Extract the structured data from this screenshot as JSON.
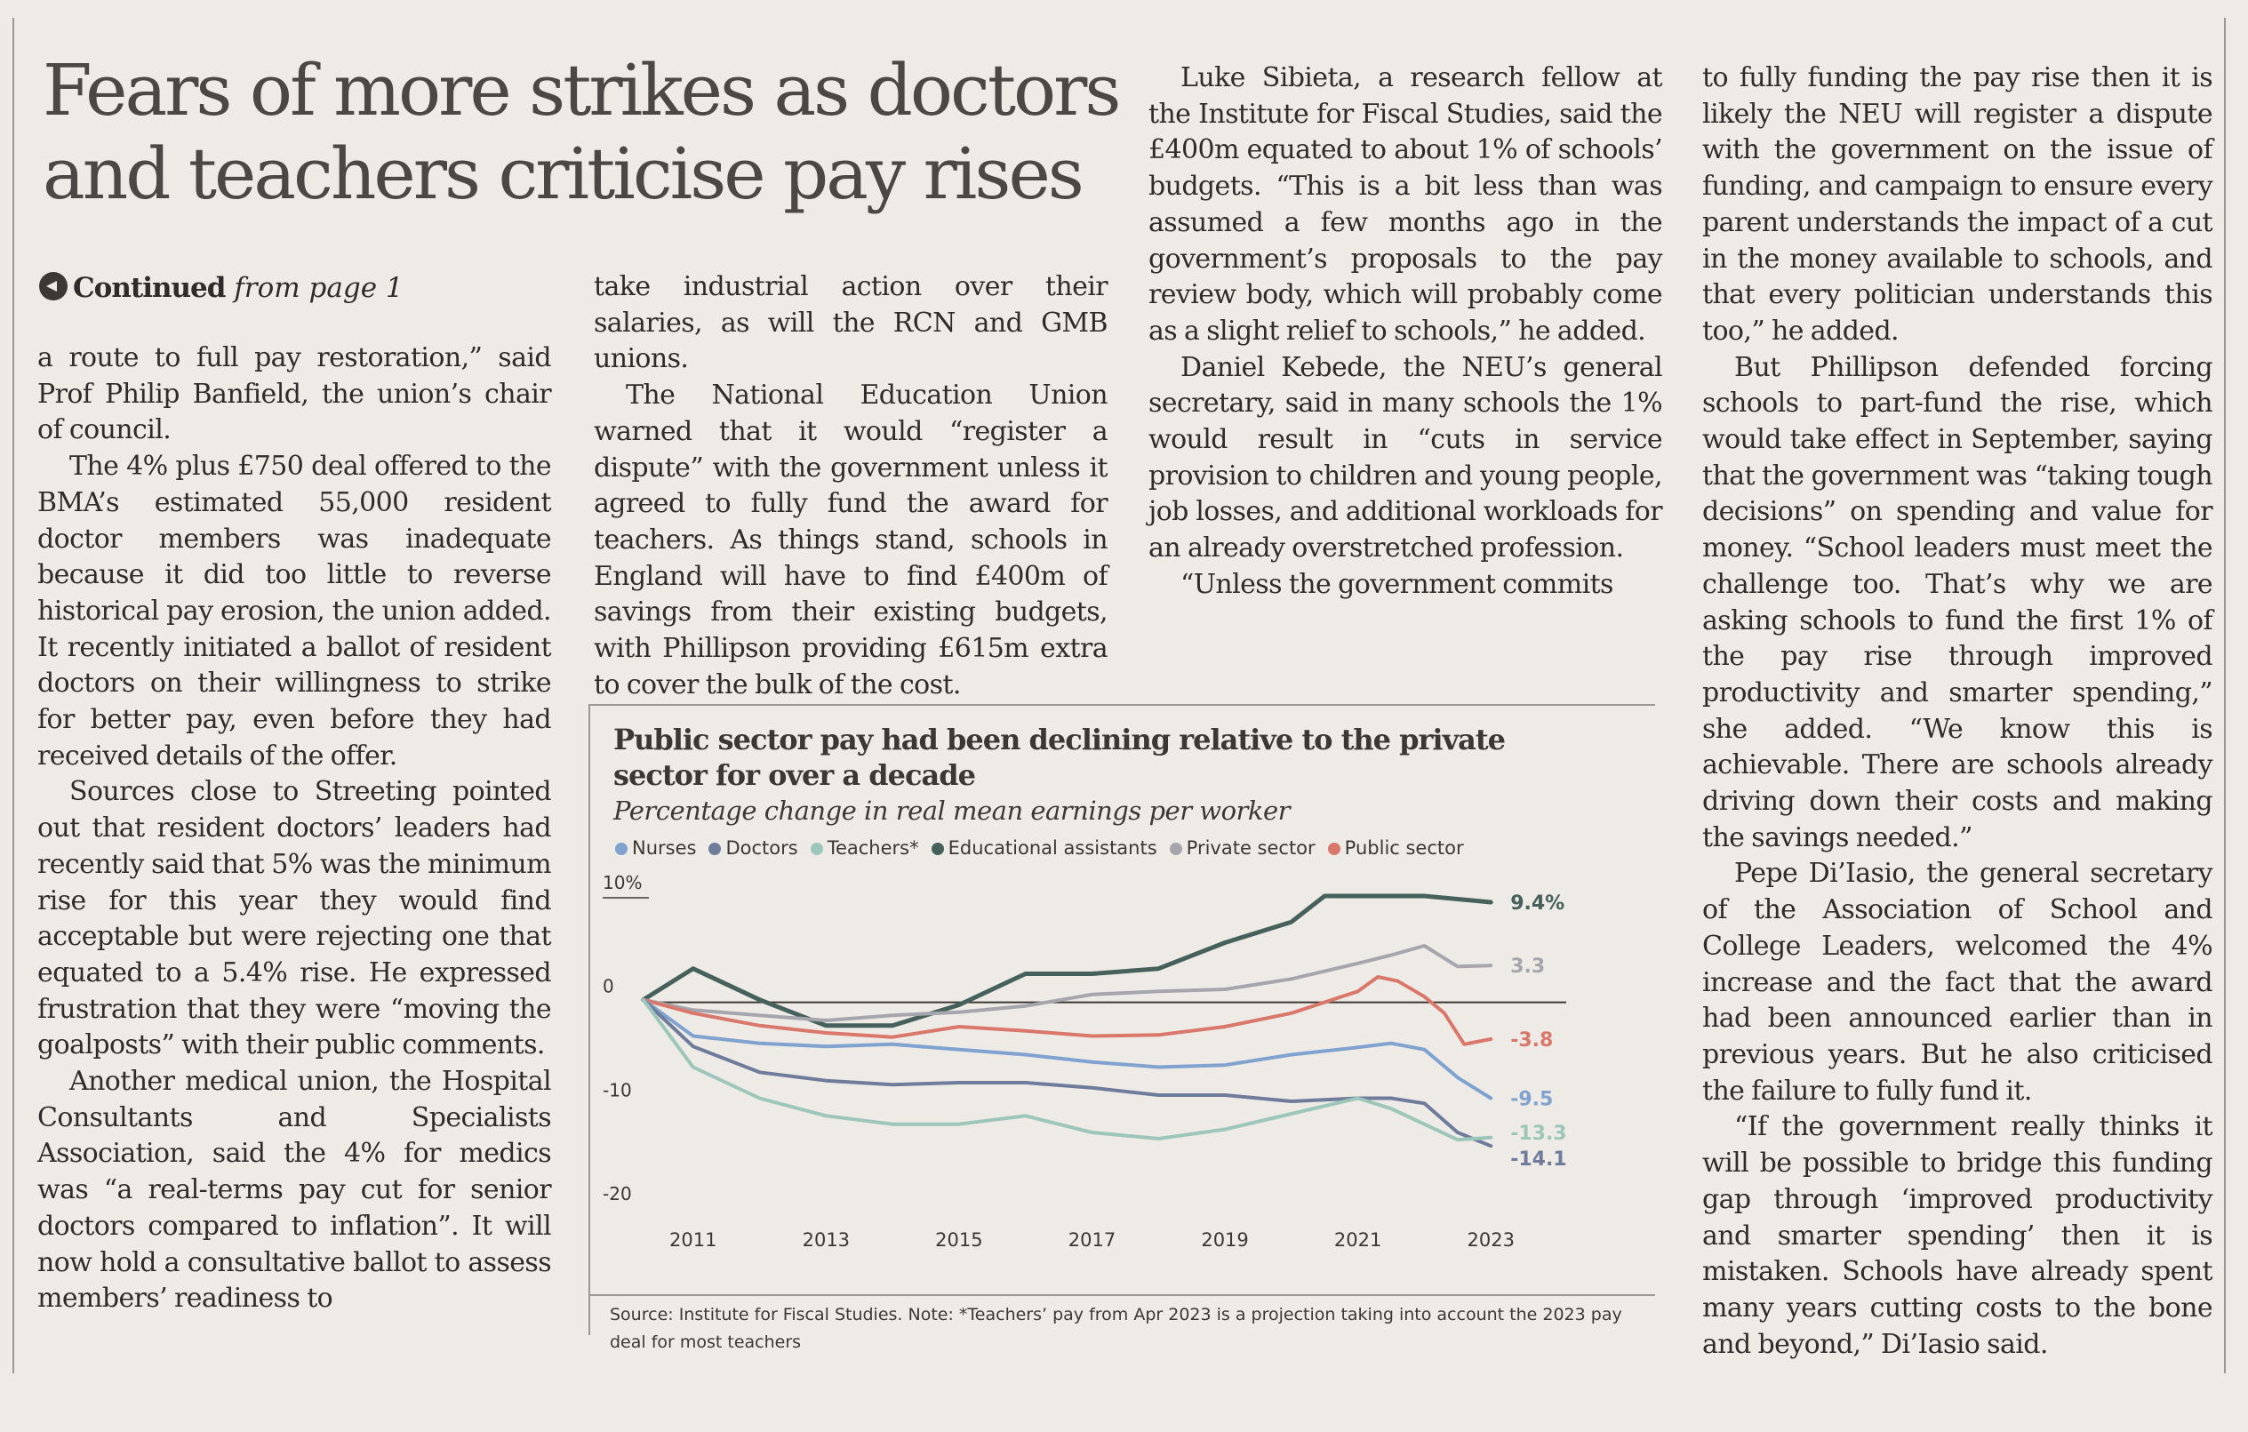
{
  "headline": "Fears of more strikes as doctors and teachers criticise pay rises",
  "continued": {
    "bold": "Continued",
    "italic": "from page 1"
  },
  "columns": [
    {
      "paragraphs": [
        "a route to full pay restoration,” said Prof Philip Banfield, the union’s chair of council.",
        "The 4% plus £750 deal offered to the BMA’s estimated 55,000 resident doctor members was inadequate because it did too little to reverse historical pay erosion, the union added. It recently initiated a ballot of resident doctors on their willingness to strike for better pay, even before they had received details of the offer.",
        "Sources close to Streeting pointed out that resident doctors’ leaders had recently said that 5% was the minimum rise for this year they would find acceptable but were rejecting one that equated to a 5.4% rise. He expressed frustration that they were “moving the goalposts” with their public comments.",
        "Another medical union, the Hospital Consultants and Specialists Association, said the 4% for medics was “a real-terms pay cut for senior doctors compared to inflation”. It will now hold a consultative ballot to assess members’ readiness to"
      ]
    },
    {
      "paragraphs": [
        "take industrial action over their salaries, as will the RCN and GMB unions.",
        "The National Education Union warned that it would “register a dispute” with the government unless it agreed to fully fund the award for teachers. As things stand, schools in England will have to find £400m of savings from their existing budgets, with Phillipson providing £615m extra to cover the bulk of the cost."
      ]
    },
    {
      "paragraphs": [
        "Luke Sibieta, a research fellow at the Institute for Fiscal Studies, said the £400m equated to about 1% of schools’ budgets. “This is a bit less than was assumed a few months ago in the government’s proposals to the pay review body, which will probably come as a slight relief to schools,” he added.",
        "Daniel Kebede, the NEU’s general secretary, said in many schools the 1% would result in “cuts in service provision to children and young people, job losses, and additional workloads for an already overstretched profession.",
        "“Unless the government commits"
      ]
    },
    {
      "paragraphs": [
        "to fully funding the pay rise then it is likely the NEU will register a dispute with the government on the issue of funding, and campaign to ensure every parent understands the impact of a cut in the money available to schools, and that every politician understands this too,” he added.",
        "But Phillipson defended forcing schools to part-fund the rise, which would take effect in September, saying that the government was “taking tough decisions” on spending and value for money. “School leaders must meet the challenge too. That’s why we are asking schools to fund the first 1% of the pay rise through improved productivity and smarter spending,” she added. “We know this is achievable. There are schools already driving down their costs and making the savings needed.”",
        "Pepe Di’Iasio, the general secretary of the Association of School and College Leaders, welcomed the 4% increase and the fact that the award had been announced earlier than in previous years. But he also criticised the failure to fully fund it.",
        "“If the government really thinks it will be possible to bridge this funding gap through ‘improved productivity and smarter spending’ then it is mistaken. Schools have already spent many years cutting costs to the bone and beyond,” Di’Iasio said."
      ]
    }
  ],
  "chart": {
    "title": "Public sector pay had been declining relative to the private sector for over a decade",
    "subtitle": "Percentage change in real mean earnings per worker",
    "source": "Source: Institute for Fiscal Studies. Note: *Teachers’ pay from Apr 2023 is a projection taking into account the 2023 pay deal for most teachers"
  },
  "chart_data": {
    "type": "line",
    "title": "Public sector pay had been declining relative to the private sector for over a decade",
    "subtitle": "Percentage change in real mean earnings per worker",
    "xlabel": "",
    "ylabel": "",
    "xlim": [
      2009.8,
      2024
    ],
    "ylim": [
      -20,
      10
    ],
    "x_ticks": [
      2011,
      2013,
      2015,
      2017,
      2019,
      2021,
      2023
    ],
    "y_ticks": [
      {
        "value": 10,
        "label": "10%"
      },
      {
        "value": 0,
        "label": "0"
      },
      {
        "value": -10,
        "label": "-10"
      },
      {
        "value": -20,
        "label": "-20"
      }
    ],
    "zero_line": true,
    "grid": false,
    "legend": "top-left",
    "series": [
      {
        "name": "Nurses",
        "color": "#7fa2cf",
        "end_label": "-9.5",
        "points": [
          [
            2010.25,
            0
          ],
          [
            2011,
            -3.5
          ],
          [
            2012,
            -4.2
          ],
          [
            2013,
            -4.5
          ],
          [
            2014,
            -4.3
          ],
          [
            2015,
            -4.8
          ],
          [
            2016,
            -5.3
          ],
          [
            2017,
            -6
          ],
          [
            2018,
            -6.5
          ],
          [
            2019,
            -6.3
          ],
          [
            2020,
            -5.3
          ],
          [
            2021,
            -4.6
          ],
          [
            2021.5,
            -4.2
          ],
          [
            2022,
            -4.8
          ],
          [
            2022.5,
            -7.5
          ],
          [
            2023,
            -9.5
          ]
        ]
      },
      {
        "name": "Doctors",
        "color": "#6f7b9a",
        "end_label": "-14.1",
        "points": [
          [
            2010.25,
            0
          ],
          [
            2011,
            -4.5
          ],
          [
            2012,
            -7
          ],
          [
            2013,
            -7.8
          ],
          [
            2014,
            -8.2
          ],
          [
            2015,
            -8
          ],
          [
            2016,
            -8
          ],
          [
            2017,
            -8.5
          ],
          [
            2018,
            -9.2
          ],
          [
            2019,
            -9.2
          ],
          [
            2020,
            -9.8
          ],
          [
            2021,
            -9.5
          ],
          [
            2021.5,
            -9.5
          ],
          [
            2022,
            -10
          ],
          [
            2022.5,
            -12.8
          ],
          [
            2023,
            -14.1
          ]
        ]
      },
      {
        "name": "Teachers*",
        "color": "#9cc6b9",
        "end_label": "-13.3",
        "points": [
          [
            2010.25,
            0
          ],
          [
            2011,
            -6.5
          ],
          [
            2012,
            -9.5
          ],
          [
            2013,
            -11.2
          ],
          [
            2014,
            -12
          ],
          [
            2015,
            -12
          ],
          [
            2016,
            -11.2
          ],
          [
            2017,
            -12.8
          ],
          [
            2018,
            -13.4
          ],
          [
            2019,
            -12.5
          ],
          [
            2020,
            -11
          ],
          [
            2021,
            -9.5
          ],
          [
            2021.5,
            -10.5
          ],
          [
            2022,
            -12
          ],
          [
            2022.5,
            -13.5
          ],
          [
            2023,
            -13.3
          ]
        ]
      },
      {
        "name": "Educational assistants",
        "color": "#46605c",
        "end_label": "9.4%",
        "points": [
          [
            2010.25,
            0
          ],
          [
            2011,
            3
          ],
          [
            2012,
            0
          ],
          [
            2013,
            -2.5
          ],
          [
            2014,
            -2.5
          ],
          [
            2015,
            -0.5
          ],
          [
            2016,
            2.5
          ],
          [
            2017,
            2.5
          ],
          [
            2018,
            3
          ],
          [
            2019,
            5.5
          ],
          [
            2020,
            7.5
          ],
          [
            2020.5,
            10
          ],
          [
            2021,
            10
          ],
          [
            2022,
            10
          ],
          [
            2023,
            9.4
          ]
        ]
      },
      {
        "name": "Private sector",
        "color": "#a5a5ad",
        "end_label": "3.3",
        "points": [
          [
            2010.25,
            0
          ],
          [
            2011,
            -1
          ],
          [
            2012,
            -1.5
          ],
          [
            2013,
            -2
          ],
          [
            2014,
            -1.5
          ],
          [
            2015,
            -1.2
          ],
          [
            2016,
            -0.6
          ],
          [
            2017,
            0.5
          ],
          [
            2018,
            0.8
          ],
          [
            2019,
            1
          ],
          [
            2020,
            2
          ],
          [
            2021,
            3.5
          ],
          [
            2021.5,
            4.3
          ],
          [
            2022,
            5.2
          ],
          [
            2022.5,
            3.2
          ],
          [
            2023,
            3.3
          ]
        ]
      },
      {
        "name": "Public sector",
        "color": "#d9776b",
        "end_label": "-3.8",
        "points": [
          [
            2010.25,
            0
          ],
          [
            2011,
            -1.3
          ],
          [
            2012,
            -2.5
          ],
          [
            2013,
            -3.2
          ],
          [
            2014,
            -3.6
          ],
          [
            2015,
            -2.6
          ],
          [
            2016,
            -3
          ],
          [
            2017,
            -3.5
          ],
          [
            2018,
            -3.4
          ],
          [
            2019,
            -2.6
          ],
          [
            2020,
            -1.3
          ],
          [
            2021,
            0.8
          ],
          [
            2021.3,
            2.2
          ],
          [
            2021.6,
            1.8
          ],
          [
            2022,
            0.3
          ],
          [
            2022.3,
            -1.3
          ],
          [
            2022.6,
            -4.3
          ],
          [
            2023,
            -3.8
          ]
        ]
      }
    ]
  }
}
